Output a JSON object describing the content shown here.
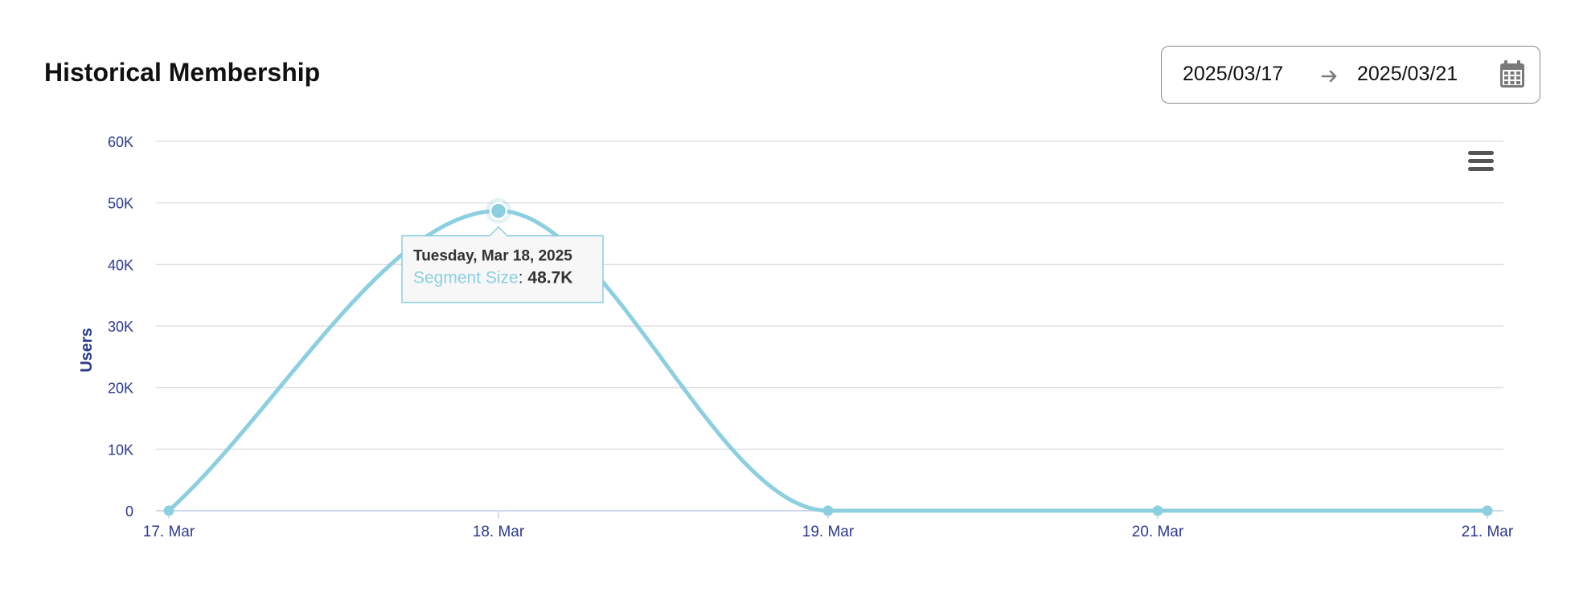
{
  "header": {
    "title": "Historical Membership"
  },
  "date_range": {
    "start": "2025/03/17",
    "end": "2025/03/21",
    "arrow_icon": "arrow-right-icon",
    "calendar_icon": "calendar-icon"
  },
  "menu": {
    "icon": "hamburger-menu-icon"
  },
  "colors": {
    "series": "#8ccfe1",
    "axis_text": "#2b3990",
    "grid": "#e0e0e0",
    "tooltip_border": "#8ccfe1",
    "tooltip_series_label": "#8ccfe1"
  },
  "tooltip": {
    "date": "Tuesday, Mar 18, 2025",
    "series_label": "Segment Size",
    "separator": ": ",
    "value": "48.7K"
  },
  "chart_data": {
    "type": "line",
    "title": "",
    "ylabel": "Users",
    "xlabel": "",
    "categories": [
      "17. Mar",
      "18. Mar",
      "19. Mar",
      "20. Mar",
      "21. Mar"
    ],
    "series": [
      {
        "name": "Segment Size",
        "values": [
          0,
          48700,
          0,
          0,
          0
        ]
      }
    ],
    "ylim": [
      0,
      60000
    ],
    "yticks": [
      0,
      10000,
      20000,
      30000,
      40000,
      50000,
      60000
    ],
    "ytick_labels": [
      "0",
      "10K",
      "20K",
      "30K",
      "40K",
      "50K",
      "60K"
    ],
    "grid": true,
    "legend": "none",
    "highlighted_index": 1
  }
}
